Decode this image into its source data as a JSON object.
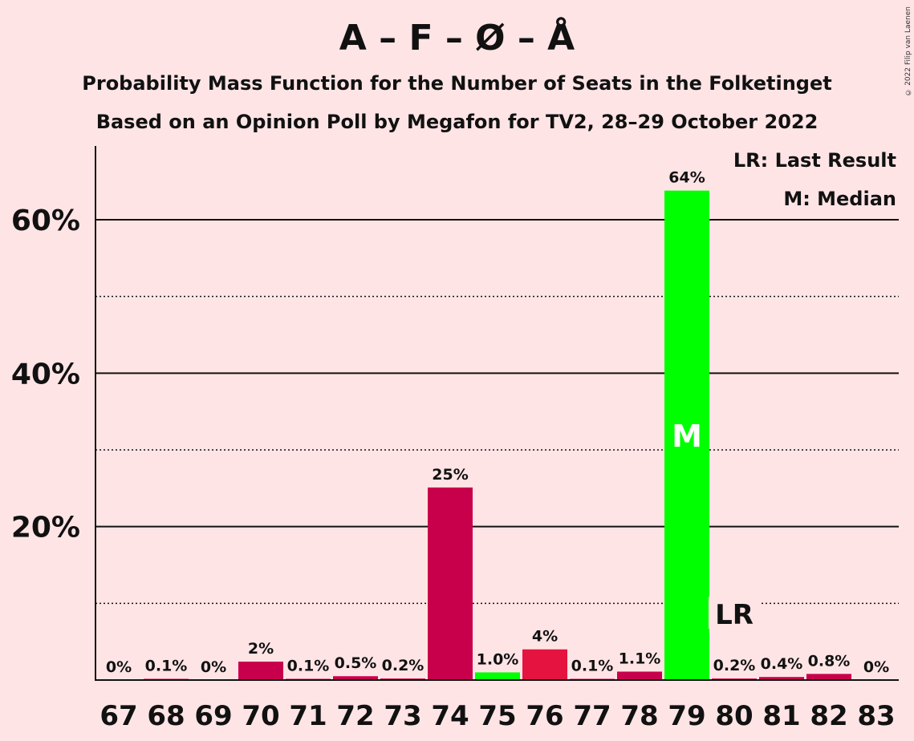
{
  "chart_data": {
    "type": "bar",
    "title": "A – F – Ø – Å",
    "subtitle_1": "Probability Mass Function for the Number of Seats in the Folketinget",
    "subtitle_2": "Based on an Opinion Poll by Megafon for TV2, 28–29 October 2022",
    "copyright": "© 2022 Filip van Laenen",
    "legend": {
      "last_result": "LR: Last Result",
      "median": "M: Median"
    },
    "categories": [
      "67",
      "68",
      "69",
      "70",
      "71",
      "72",
      "73",
      "74",
      "75",
      "76",
      "77",
      "78",
      "79",
      "80",
      "81",
      "82",
      "83"
    ],
    "values": [
      0,
      0.1,
      0,
      2.4,
      0.1,
      0.5,
      0.2,
      25.1,
      1.0,
      4.0,
      0.1,
      1.1,
      63.8,
      0.2,
      0.4,
      0.8,
      0
    ],
    "labels": [
      "0%",
      "0.1%",
      "0%",
      "2%",
      "0.1%",
      "0.5%",
      "0.2%",
      "25%",
      "1.0%",
      "4%",
      "0.1%",
      "1.1%",
      "64%",
      "0.2%",
      "0.4%",
      "0.8%",
      "0%"
    ],
    "bar_colors": [
      "#C8004B",
      "#C8004B",
      "#C8004B",
      "#C8004B",
      "#C8004B",
      "#C8004B",
      "#C8004B",
      "#C8004B",
      "#00FF00",
      "#E5133F",
      "#C8004B",
      "#C8004B",
      "#00FF00",
      "#C8004B",
      "#C8004B",
      "#C8004B",
      "#C8004B"
    ],
    "median_category": "79",
    "median_marker": "M",
    "last_result_category": "80",
    "last_result_marker": "LR",
    "ylim": [
      0,
      70
    ],
    "major_ticks": [
      20,
      40,
      60
    ],
    "major_tick_labels": [
      "20%",
      "40%",
      "60%"
    ],
    "minor_gridlines": [
      10,
      30,
      50
    ]
  }
}
